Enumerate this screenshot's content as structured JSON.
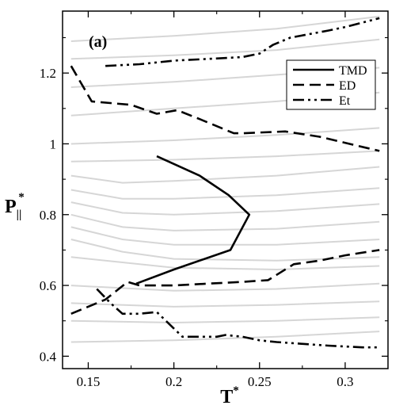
{
  "chart_data": {
    "type": "line",
    "panel_label": "(a)",
    "xlabel": "T",
    "xlabel_superscript": "*",
    "ylabel": "P",
    "ylabel_subscript": "||",
    "ylabel_superscript": "*",
    "xlim": [
      0.135,
      0.325
    ],
    "ylim": [
      0.365,
      1.375
    ],
    "xticks": [
      0.15,
      0.2,
      0.25,
      0.3
    ],
    "xtick_labels": [
      "0.15",
      "0.2",
      "0.25",
      "0.3"
    ],
    "yticks": [
      0.4,
      0.6,
      0.8,
      1.0,
      1.2
    ],
    "ytick_labels": [
      "0.4",
      "0.6",
      "0.8",
      "1",
      "1.2"
    ],
    "legend_position": "top-right",
    "grid": false,
    "isochores": {
      "color": "#d6d6d6",
      "lines": [
        [
          [
            0.14,
            1.29
          ],
          [
            0.2,
            1.305
          ],
          [
            0.26,
            1.325
          ],
          [
            0.32,
            1.36
          ]
        ],
        [
          [
            0.14,
            1.24
          ],
          [
            0.2,
            1.25
          ],
          [
            0.26,
            1.265
          ],
          [
            0.32,
            1.295
          ]
        ],
        [
          [
            0.14,
            1.16
          ],
          [
            0.2,
            1.175
          ],
          [
            0.26,
            1.195
          ],
          [
            0.32,
            1.215
          ]
        ],
        [
          [
            0.14,
            1.08
          ],
          [
            0.2,
            1.1
          ],
          [
            0.26,
            1.12
          ],
          [
            0.32,
            1.145
          ]
        ],
        [
          [
            0.14,
            1.0
          ],
          [
            0.2,
            1.01
          ],
          [
            0.26,
            1.025
          ],
          [
            0.32,
            1.045
          ]
        ],
        [
          [
            0.14,
            0.95
          ],
          [
            0.2,
            0.955
          ],
          [
            0.26,
            0.965
          ],
          [
            0.32,
            0.98
          ]
        ],
        [
          [
            0.14,
            0.91
          ],
          [
            0.17,
            0.89
          ],
          [
            0.2,
            0.895
          ],
          [
            0.26,
            0.91
          ],
          [
            0.32,
            0.935
          ]
        ],
        [
          [
            0.14,
            0.87
          ],
          [
            0.17,
            0.845
          ],
          [
            0.2,
            0.845
          ],
          [
            0.26,
            0.855
          ],
          [
            0.32,
            0.875
          ]
        ],
        [
          [
            0.14,
            0.835
          ],
          [
            0.17,
            0.805
          ],
          [
            0.2,
            0.8
          ],
          [
            0.26,
            0.81
          ],
          [
            0.32,
            0.83
          ]
        ],
        [
          [
            0.14,
            0.8
          ],
          [
            0.17,
            0.765
          ],
          [
            0.2,
            0.755
          ],
          [
            0.26,
            0.76
          ],
          [
            0.32,
            0.78
          ]
        ],
        [
          [
            0.14,
            0.765
          ],
          [
            0.17,
            0.73
          ],
          [
            0.2,
            0.715
          ],
          [
            0.26,
            0.715
          ],
          [
            0.32,
            0.73
          ]
        ],
        [
          [
            0.14,
            0.73
          ],
          [
            0.17,
            0.695
          ],
          [
            0.2,
            0.675
          ],
          [
            0.26,
            0.67
          ],
          [
            0.32,
            0.68
          ]
        ],
        [
          [
            0.14,
            0.68
          ],
          [
            0.2,
            0.65
          ],
          [
            0.26,
            0.645
          ],
          [
            0.32,
            0.655
          ]
        ],
        [
          [
            0.14,
            0.6
          ],
          [
            0.2,
            0.585
          ],
          [
            0.26,
            0.59
          ],
          [
            0.32,
            0.605
          ]
        ],
        [
          [
            0.14,
            0.55
          ],
          [
            0.2,
            0.54
          ],
          [
            0.26,
            0.545
          ],
          [
            0.32,
            0.555
          ]
        ],
        [
          [
            0.14,
            0.5
          ],
          [
            0.2,
            0.495
          ],
          [
            0.26,
            0.5
          ],
          [
            0.32,
            0.51
          ]
        ],
        [
          [
            0.14,
            0.44
          ],
          [
            0.2,
            0.445
          ],
          [
            0.26,
            0.455
          ],
          [
            0.32,
            0.47
          ]
        ]
      ]
    },
    "series": [
      {
        "name": "TMD",
        "dash": "solid",
        "color": "#000000",
        "points": [
          [
            0.19,
            0.965
          ],
          [
            0.215,
            0.91
          ],
          [
            0.232,
            0.855
          ],
          [
            0.244,
            0.8
          ],
          [
            0.233,
            0.7
          ],
          [
            0.2,
            0.645
          ],
          [
            0.178,
            0.605
          ]
        ]
      },
      {
        "name": "ED",
        "dash": "dashed",
        "color": "#000000",
        "segments": [
          [
            [
              0.14,
              1.22
            ],
            [
              0.152,
              1.12
            ],
            [
              0.175,
              1.11
            ],
            [
              0.19,
              1.085
            ],
            [
              0.202,
              1.095
            ],
            [
              0.215,
              1.07
            ],
            [
              0.235,
              1.03
            ],
            [
              0.24,
              1.03
            ],
            [
              0.265,
              1.035
            ],
            [
              0.285,
              1.02
            ],
            [
              0.32,
              0.98
            ]
          ],
          [
            [
              0.14,
              0.52
            ],
            [
              0.16,
              0.56
            ],
            [
              0.173,
              0.61
            ],
            [
              0.18,
              0.6
            ],
            [
              0.2,
              0.6
            ],
            [
              0.22,
              0.605
            ],
            [
              0.24,
              0.61
            ],
            [
              0.255,
              0.615
            ],
            [
              0.27,
              0.66
            ],
            [
              0.285,
              0.67
            ],
            [
              0.3,
              0.685
            ],
            [
              0.32,
              0.7
            ]
          ]
        ]
      },
      {
        "name": "Et",
        "dash": "dashdotdot",
        "color": "#000000",
        "segments": [
          [
            [
              0.16,
              1.22
            ],
            [
              0.18,
              1.225
            ],
            [
              0.2,
              1.235
            ],
            [
              0.22,
              1.24
            ],
            [
              0.24,
              1.245
            ],
            [
              0.25,
              1.255
            ],
            [
              0.258,
              1.28
            ],
            [
              0.268,
              1.3
            ],
            [
              0.29,
              1.32
            ],
            [
              0.3,
              1.33
            ],
            [
              0.32,
              1.355
            ]
          ],
          [
            [
              0.155,
              0.59
            ],
            [
              0.163,
              0.55
            ],
            [
              0.17,
              0.52
            ],
            [
              0.18,
              0.52
            ],
            [
              0.19,
              0.525
            ],
            [
              0.205,
              0.455
            ],
            [
              0.225,
              0.455
            ],
            [
              0.23,
              0.46
            ],
            [
              0.24,
              0.455
            ],
            [
              0.25,
              0.445
            ],
            [
              0.26,
              0.44
            ],
            [
              0.29,
              0.43
            ],
            [
              0.31,
              0.425
            ],
            [
              0.32,
              0.425
            ]
          ]
        ]
      }
    ]
  }
}
